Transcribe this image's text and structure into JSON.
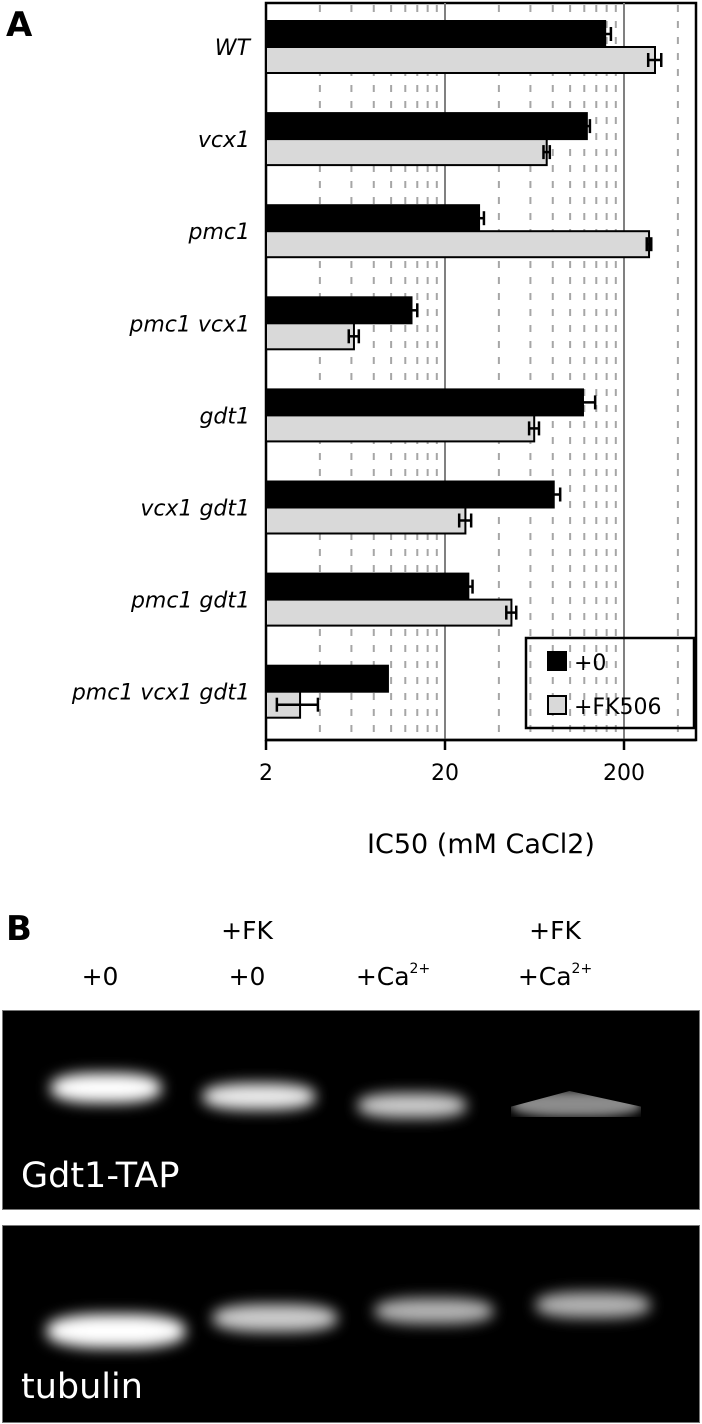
{
  "panel_a": {
    "letter": "A",
    "axis_title": "IC50 (mM CaCl2)",
    "tick_labels": [
      "2",
      "20",
      "200"
    ],
    "legend": [
      {
        "label": "+0",
        "color": "#000000"
      },
      {
        "label": "+FK506",
        "color": "#d9d9d9"
      }
    ]
  },
  "chart_data": {
    "type": "bar",
    "orientation": "horizontal",
    "title": "",
    "xlabel": "IC50 (mM CaCl2)",
    "ylabel": "",
    "xscale": "log",
    "xlim": [
      2,
      500
    ],
    "xticks": [
      2,
      20,
      200
    ],
    "minor_gridlines": [
      4,
      6,
      8,
      10,
      12,
      14,
      16,
      18,
      40,
      60,
      80,
      100,
      120,
      140,
      160,
      180,
      400
    ],
    "major_gridlines": [
      20,
      200
    ],
    "grid": true,
    "legend_position": "lower right (inside)",
    "categories": [
      "WT",
      "vcx1",
      "pmc1",
      "pmc1 vcx1",
      "gdt1",
      "vcx1 gdt1",
      "pmc1 gdt1",
      "pmc1 vcx1 gdt1"
    ],
    "series": [
      {
        "name": "+0",
        "color": "#000000",
        "values": [
          157,
          124,
          31,
          13,
          118,
          81,
          27,
          9.6
        ],
        "error": [
          12,
          5,
          2,
          1,
          20,
          7,
          1.5,
          0
        ]
      },
      {
        "name": "+FK506",
        "color": "#d9d9d9",
        "values": [
          298,
          74,
          276,
          6.2,
          63,
          26,
          47,
          3.1
        ],
        "error": [
          25,
          3,
          8,
          0.4,
          4,
          2,
          3,
          0.8
        ]
      }
    ]
  },
  "panel_b": {
    "letter": "B",
    "lanes": [
      {
        "line1": "",
        "line2": "+0",
        "sup": ""
      },
      {
        "line1": "+FK",
        "line2": "+0",
        "sup": ""
      },
      {
        "line1": "",
        "line2": "+Ca",
        "sup": "2+"
      },
      {
        "line1": "+FK",
        "line2": "+Ca",
        "sup": "2+"
      }
    ],
    "blots": [
      {
        "label": "Gdt1-TAP",
        "band_intensity": [
          1.0,
          0.92,
          0.8,
          0.55
        ]
      },
      {
        "label": "tubulin",
        "band_intensity": [
          1.0,
          0.8,
          0.7,
          0.7
        ]
      }
    ]
  }
}
